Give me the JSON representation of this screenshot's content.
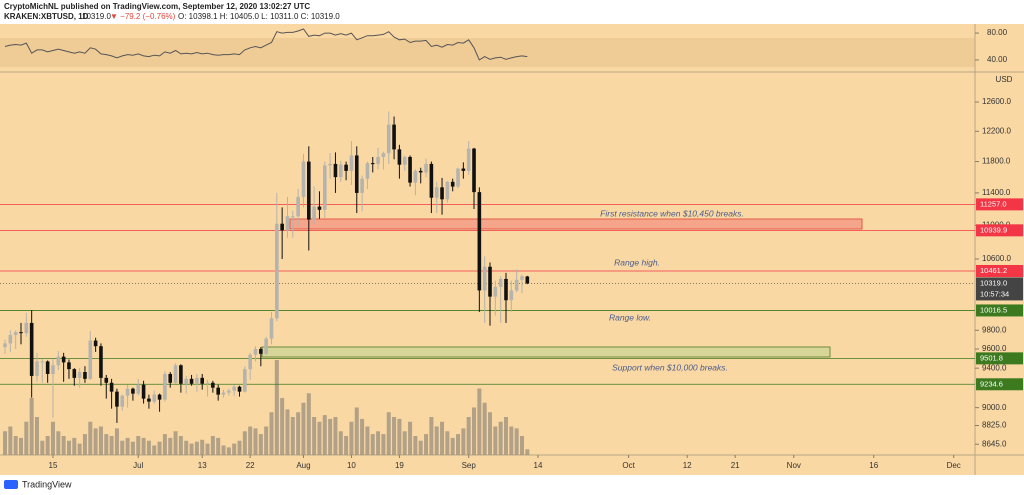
{
  "header": {
    "line1": "CryptoMichNL published on TradingView.com, September 12, 2020 13:02:27 UTC",
    "symbol": "KRAKEN:XBTUSD, 1D",
    "last": "10319.0",
    "change": "▼ −79.2 (−0.76%)",
    "ohlc": "O: 10398.1 H: 10405.0 L: 10311.0 C: 10319.0"
  },
  "footer": {
    "brand": "TradingView"
  },
  "chart_data": {
    "type": "candlestick",
    "currency": "USD",
    "log_scale": true,
    "xlim": [
      -0.94,
      182
    ],
    "ylim": [
      8543,
      12980
    ],
    "xticks": [
      {
        "value": 9,
        "label": "15"
      },
      {
        "value": 25,
        "label": "Jul"
      },
      {
        "value": 37,
        "label": "13"
      },
      {
        "value": 46,
        "label": "22"
      },
      {
        "value": 56,
        "label": "Aug"
      },
      {
        "value": 65,
        "label": "10"
      },
      {
        "value": 74,
        "label": "19"
      },
      {
        "value": 87,
        "label": "Sep"
      },
      {
        "value": 100,
        "label": "14"
      },
      {
        "value": 117,
        "label": "Oct"
      },
      {
        "value": 128,
        "label": "12"
      },
      {
        "value": 137,
        "label": "21"
      },
      {
        "value": 148,
        "label": "Nov"
      },
      {
        "value": 163,
        "label": "16"
      },
      {
        "value": 178,
        "label": "Dec"
      }
    ],
    "yticks": [
      {
        "value": 8645,
        "label": "8645.0"
      },
      {
        "value": 8825,
        "label": "8825.0"
      },
      {
        "value": 9000,
        "label": "9000.0"
      },
      {
        "value": 9400,
        "label": "9400.0"
      },
      {
        "value": 9600,
        "label": "9600.0"
      },
      {
        "value": 9800,
        "label": "9800.0"
      },
      {
        "value": 10600,
        "label": "10600.0"
      },
      {
        "value": 11000,
        "label": "11000.0"
      },
      {
        "value": 11400,
        "label": "11400.0"
      },
      {
        "value": 11800,
        "label": "11800.0"
      },
      {
        "value": 12200,
        "label": "12200.0"
      },
      {
        "value": 12600,
        "label": "12600.0"
      }
    ],
    "up_color": "#b5b3ad",
    "down_color": "#111111",
    "volume_color": "#9a8f7c",
    "ohlc": [
      [
        9620,
        9700,
        9550,
        9660
      ],
      [
        9660,
        9800,
        9570,
        9750
      ],
      [
        9750,
        9800,
        9600,
        9780
      ],
      [
        9780,
        9880,
        9650,
        9770
      ],
      [
        9770,
        9990,
        9730,
        9880
      ],
      [
        9880,
        10020,
        9100,
        9320
      ],
      [
        9320,
        9560,
        9260,
        9470
      ],
      [
        9470,
        9500,
        9250,
        9470
      ],
      [
        9470,
        9480,
        9250,
        9340
      ],
      [
        9340,
        9500,
        8900,
        9430
      ],
      [
        9430,
        9580,
        9380,
        9520
      ],
      [
        9520,
        9560,
        9260,
        9460
      ],
      [
        9460,
        9490,
        9290,
        9390
      ],
      [
        9390,
        9400,
        9220,
        9300
      ],
      [
        9300,
        9400,
        9200,
        9360
      ],
      [
        9360,
        9420,
        9250,
        9290
      ],
      [
        9290,
        9790,
        9280,
        9690
      ],
      [
        9690,
        9720,
        9570,
        9630
      ],
      [
        9630,
        9660,
        9220,
        9300
      ],
      [
        9300,
        9330,
        9090,
        9250
      ],
      [
        9250,
        9290,
        8990,
        9160
      ],
      [
        9160,
        9190,
        8850,
        9010
      ],
      [
        9010,
        9130,
        8970,
        9120
      ],
      [
        9120,
        9230,
        9000,
        9190
      ],
      [
        9190,
        9200,
        9070,
        9140
      ],
      [
        9140,
        9290,
        9120,
        9230
      ],
      [
        9230,
        9270,
        9040,
        9090
      ],
      [
        9090,
        9130,
        8990,
        9060
      ],
      [
        9060,
        9170,
        9040,
        9130
      ],
      [
        9130,
        9140,
        8960,
        9080
      ],
      [
        9080,
        9370,
        9060,
        9340
      ],
      [
        9340,
        9360,
        9200,
        9250
      ],
      [
        9250,
        9450,
        9240,
        9430
      ],
      [
        9430,
        9440,
        9150,
        9240
      ],
      [
        9240,
        9320,
        9140,
        9290
      ],
      [
        9290,
        9330,
        9220,
        9240
      ],
      [
        9240,
        9340,
        9160,
        9300
      ],
      [
        9300,
        9340,
        9180,
        9240
      ],
      [
        9240,
        9280,
        9110,
        9250
      ],
      [
        9250,
        9270,
        9150,
        9200
      ],
      [
        9200,
        9230,
        9070,
        9130
      ],
      [
        9130,
        9180,
        9100,
        9150
      ],
      [
        9150,
        9190,
        9120,
        9170
      ],
      [
        9170,
        9230,
        9120,
        9210
      ],
      [
        9210,
        9220,
        9110,
        9160
      ],
      [
        9160,
        9420,
        9150,
        9390
      ],
      [
        9390,
        9560,
        9280,
        9540
      ],
      [
        9540,
        9630,
        9470,
        9600
      ],
      [
        9600,
        9620,
        9420,
        9550
      ],
      [
        9550,
        9730,
        9540,
        9710
      ],
      [
        9710,
        10000,
        9650,
        9930
      ],
      [
        9930,
        11400,
        9900,
        11020
      ],
      [
        11020,
        11220,
        10600,
        10940
      ],
      [
        10940,
        11350,
        10850,
        11110
      ],
      [
        11110,
        11180,
        10850,
        11110
      ],
      [
        11110,
        11450,
        10990,
        11350
      ],
      [
        11350,
        11900,
        11220,
        11800
      ],
      [
        11800,
        12000,
        10700,
        11070
      ],
      [
        11070,
        11480,
        11020,
        11230
      ],
      [
        11230,
        11420,
        11080,
        11190
      ],
      [
        11190,
        11800,
        11090,
        11750
      ],
      [
        11750,
        11910,
        11580,
        11770
      ],
      [
        11770,
        11920,
        11400,
        11600
      ],
      [
        11600,
        11810,
        11540,
        11760
      ],
      [
        11760,
        11800,
        11560,
        11680
      ],
      [
        11680,
        12070,
        11500,
        11880
      ],
      [
        11880,
        12000,
        11150,
        11400
      ],
      [
        11400,
        11620,
        11170,
        11580
      ],
      [
        11580,
        11800,
        11450,
        11780
      ],
      [
        11780,
        11860,
        11660,
        11770
      ],
      [
        11770,
        11980,
        11700,
        11860
      ],
      [
        11860,
        11930,
        11700,
        11910
      ],
      [
        11910,
        12470,
        11770,
        12290
      ],
      [
        12290,
        12400,
        11830,
        11960
      ],
      [
        11960,
        12020,
        11580,
        11760
      ],
      [
        11760,
        11880,
        11680,
        11860
      ],
      [
        11860,
        11880,
        11480,
        11530
      ],
      [
        11530,
        11700,
        11370,
        11680
      ],
      [
        11680,
        11720,
        11520,
        11660
      ],
      [
        11660,
        11840,
        11600,
        11770
      ],
      [
        11770,
        11800,
        11150,
        11340
      ],
      [
        11340,
        11540,
        11150,
        11470
      ],
      [
        11470,
        11590,
        11130,
        11320
      ],
      [
        11320,
        11550,
        11280,
        11540
      ],
      [
        11540,
        11580,
        11420,
        11480
      ],
      [
        11480,
        11720,
        11460,
        11710
      ],
      [
        11710,
        11790,
        11580,
        11680
      ],
      [
        11680,
        12070,
        11630,
        11970
      ],
      [
        11970,
        11980,
        11200,
        11410
      ],
      [
        11410,
        11470,
        10000,
        10240
      ],
      [
        10240,
        10630,
        9880,
        10510
      ],
      [
        10510,
        10560,
        9850,
        10170
      ],
      [
        10170,
        10350,
        9960,
        10280
      ],
      [
        10280,
        10400,
        9880,
        10370
      ],
      [
        10370,
        10440,
        9880,
        10130
      ],
      [
        10130,
        10350,
        10000,
        10240
      ],
      [
        10240,
        10480,
        10220,
        10360
      ],
      [
        10360,
        10420,
        10210,
        10400
      ],
      [
        10398.1,
        10405.0,
        10311.0,
        10319.0
      ]
    ],
    "volume": [
      25,
      30,
      20,
      18,
      35,
      60,
      40,
      15,
      20,
      35,
      25,
      20,
      15,
      18,
      12,
      22,
      35,
      28,
      30,
      22,
      20,
      28,
      15,
      18,
      14,
      20,
      18,
      15,
      10,
      14,
      22,
      18,
      25,
      20,
      15,
      12,
      14,
      16,
      12,
      20,
      18,
      10,
      8,
      12,
      15,
      25,
      30,
      28,
      22,
      30,
      45,
      100,
      60,
      48,
      40,
      45,
      55,
      65,
      40,
      35,
      42,
      38,
      40,
      25,
      20,
      35,
      50,
      38,
      30,
      22,
      25,
      22,
      45,
      40,
      38,
      25,
      35,
      20,
      15,
      22,
      40,
      30,
      35,
      25,
      18,
      22,
      28,
      40,
      50,
      70,
      55,
      45,
      30,
      35,
      40,
      30,
      28,
      20,
      6
    ],
    "rsi": {
      "color": "#555555",
      "ylim": [
        25,
        92
      ],
      "yticks": [
        {
          "value": 80,
          "label": "80.00"
        },
        {
          "value": 40,
          "label": "40.00"
        }
      ],
      "values": [
        60,
        62,
        63,
        62,
        65,
        50,
        55,
        55,
        52,
        54,
        56,
        54,
        52,
        50,
        52,
        50,
        58,
        56,
        49,
        48,
        46,
        43,
        46,
        48,
        47,
        49,
        46,
        45,
        47,
        46,
        52,
        50,
        54,
        49,
        50,
        49,
        51,
        49,
        50,
        48,
        47,
        48,
        48,
        49,
        48,
        55,
        58,
        60,
        58,
        62,
        66,
        82,
        80,
        81,
        81,
        83,
        86,
        75,
        77,
        76,
        80,
        80,
        77,
        79,
        77,
        80,
        70,
        73,
        76,
        76,
        77,
        78,
        82,
        74,
        70,
        71,
        66,
        68,
        68,
        69,
        60,
        62,
        59,
        63,
        62,
        66,
        65,
        70,
        58,
        40,
        45,
        41,
        43,
        44,
        41,
        43,
        45,
        46,
        45
      ]
    },
    "levels": [
      {
        "value": 11257.0,
        "label": "11257.0",
        "color": "#f23645"
      },
      {
        "value": 10939.9,
        "label": "10939.9",
        "color": "#f23645"
      },
      {
        "value": 10461.2,
        "label": "10461.2",
        "color": "#f23645"
      },
      {
        "value": 10016.5,
        "label": "10016.5",
        "color": "#3d7a1f"
      },
      {
        "value": 9501.8,
        "label": "9501.8",
        "color": "#3d7a1f"
      },
      {
        "value": 9234.6,
        "label": "9234.6",
        "color": "#3d7a1f"
      }
    ],
    "last_price": {
      "value": 10319.0,
      "label": "10319.0",
      "countdown": "10:57:34",
      "color": "#444444"
    },
    "annotations": [
      "First resistance when $10,450 breaks.",
      "Range high.",
      "Range low.",
      "Support when $10,000 breaks."
    ]
  }
}
